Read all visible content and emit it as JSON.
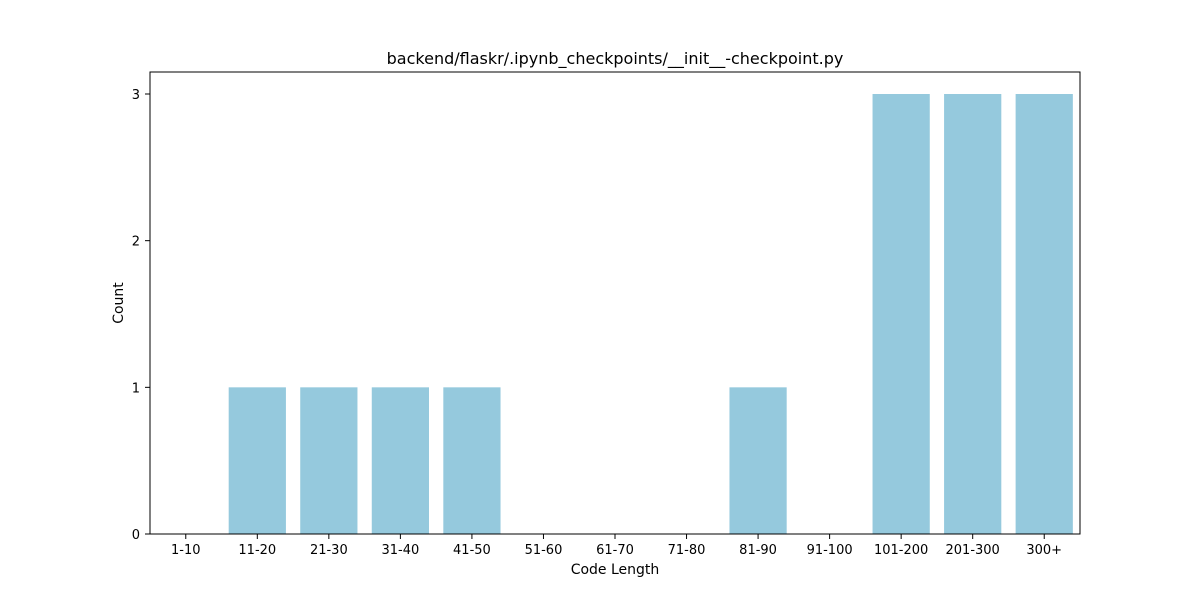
{
  "chart_data": {
    "type": "bar",
    "title": "backend/flaskr/.ipynb_checkpoints/__init__-checkpoint.py",
    "xlabel": "Code Length",
    "ylabel": "Count",
    "categories": [
      "1-10",
      "11-20",
      "21-30",
      "31-40",
      "41-50",
      "51-60",
      "61-70",
      "71-80",
      "81-90",
      "91-100",
      "101-200",
      "201-300",
      "300+"
    ],
    "values": [
      0,
      1,
      1,
      1,
      1,
      0,
      0,
      0,
      1,
      0,
      3,
      3,
      3
    ],
    "ylim": [
      0,
      3.15
    ],
    "yticks": [
      0,
      1,
      2,
      3
    ],
    "grid": false,
    "bar_color": "#95c9dd",
    "axis_color": "#000000"
  }
}
